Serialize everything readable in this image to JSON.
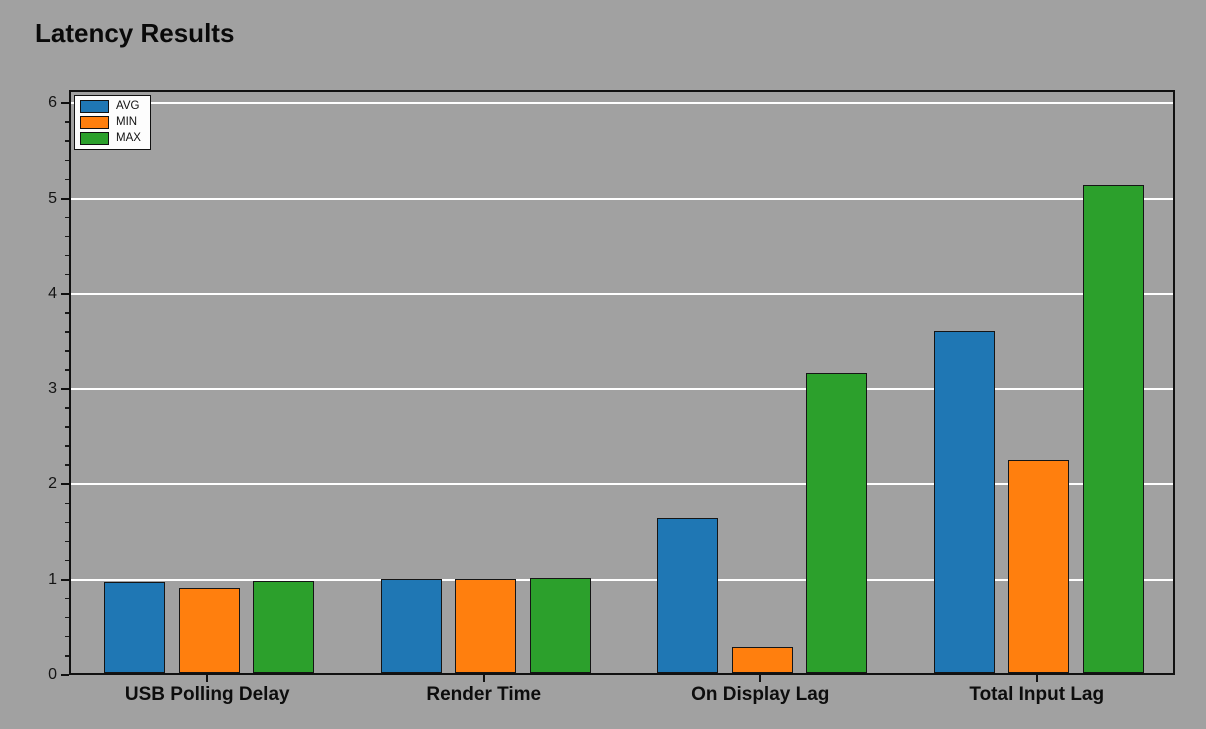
{
  "title": "Latency Results",
  "legend": {
    "position": "upper-left",
    "entries": [
      {
        "label": "AVG",
        "color": "#1f77b4"
      },
      {
        "label": "MIN",
        "color": "#ff7f0e"
      },
      {
        "label": "MAX",
        "color": "#2ca02c"
      }
    ]
  },
  "chart_data": {
    "type": "bar",
    "title": "Latency Results",
    "categories": [
      "USB Polling Delay",
      "Render Time",
      "On Display Lag",
      "Total Input Lag"
    ],
    "series": [
      {
        "name": "AVG",
        "color": "#1f77b4",
        "values": [
          0.96,
          0.99,
          1.63,
          3.59
        ]
      },
      {
        "name": "MIN",
        "color": "#ff7f0e",
        "values": [
          0.89,
          0.99,
          0.27,
          2.24
        ]
      },
      {
        "name": "MAX",
        "color": "#2ca02c",
        "values": [
          0.97,
          1.0,
          3.15,
          5.12
        ]
      }
    ],
    "xlabel": "",
    "ylabel": "",
    "ylim": [
      0,
      6.14
    ],
    "yticks": [
      0,
      1,
      2,
      3,
      4,
      5,
      6
    ],
    "minor_tick_step": 0.2,
    "grid": "horizontal-major",
    "grid_color": "#ffffff",
    "legend_position": "upper-left"
  },
  "colors": {
    "background": "#a1a1a1",
    "axes_background": "#a1a1a1",
    "spine": "#111111",
    "bar_edge": "#151515",
    "grid": "#ffffff",
    "text": "#0d0d0d",
    "legend_background": "#fdfdfd"
  }
}
